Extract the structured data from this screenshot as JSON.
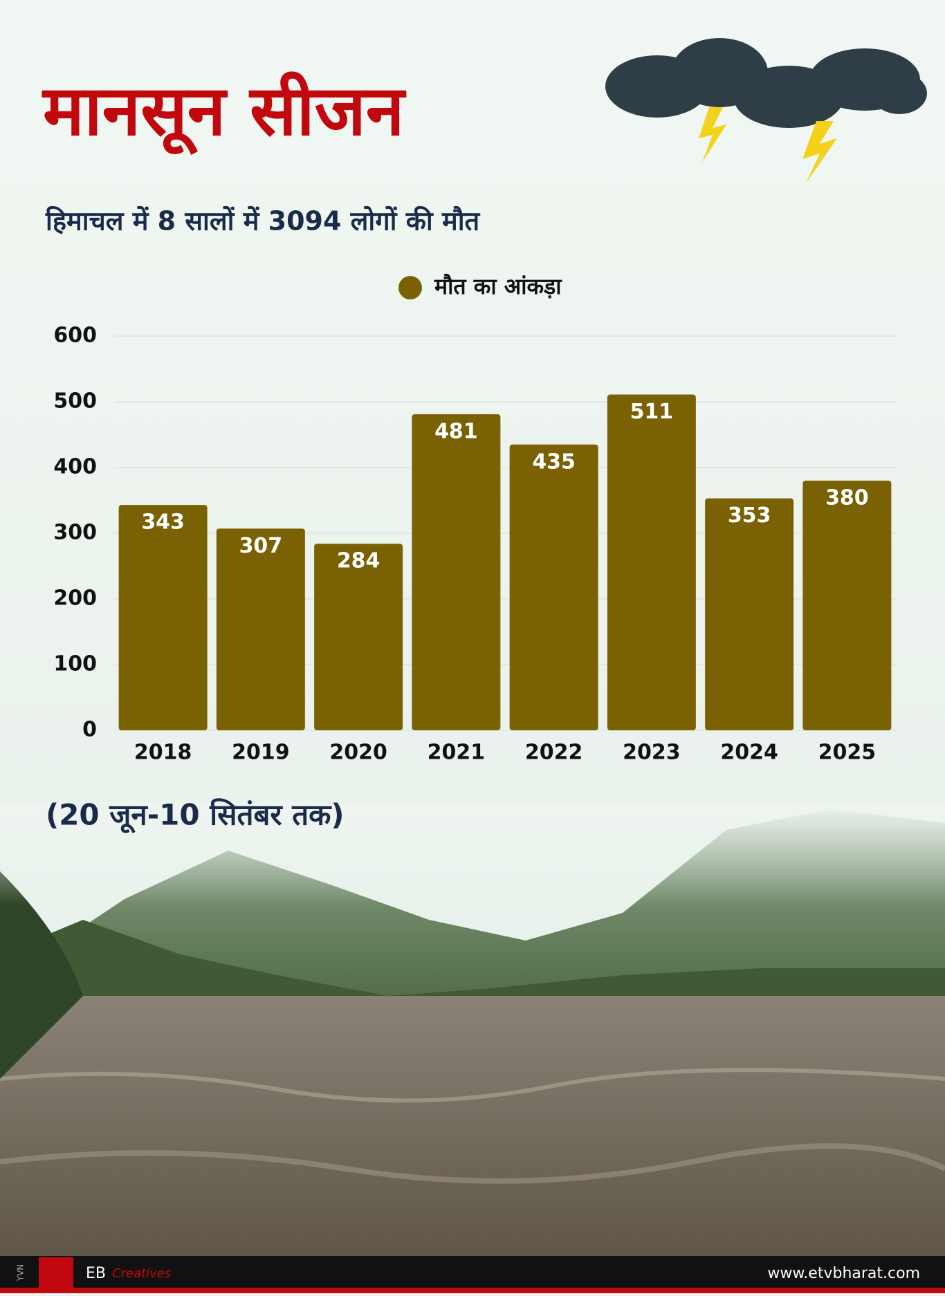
{
  "chart_data": {
    "type": "bar",
    "title": "मानसून सीजन",
    "subtitle": "हिमाचल में 8 सालों में 3094 लोगों की मौत",
    "note": "(20 जून-10 सितंबर तक)",
    "categories": [
      "2018",
      "2019",
      "2020",
      "2021",
      "2022",
      "2023",
      "2024",
      "2025"
    ],
    "series": [
      {
        "name": "मौत का आंकड़ा",
        "color": "#7a6104",
        "values": [
          343,
          307,
          284,
          481,
          435,
          511,
          353,
          380
        ]
      }
    ],
    "ylim": [
      0,
      600
    ],
    "yticks": [
      0,
      100,
      200,
      300,
      400,
      500,
      600
    ],
    "grid": true,
    "legend": "top"
  },
  "footer": {
    "brand": "EB",
    "brand_sub": "Creatives",
    "website": "www.etvbharat.com",
    "side": "YVN"
  }
}
